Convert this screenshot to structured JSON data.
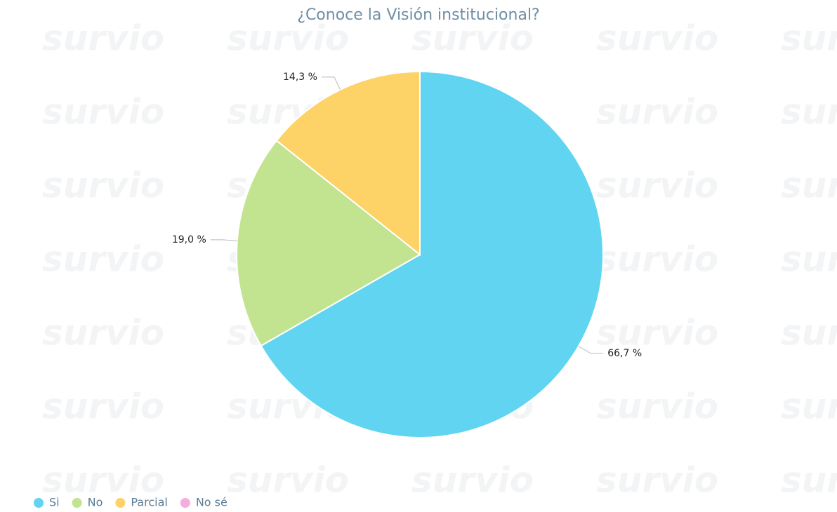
{
  "chart_data": {
    "type": "pie",
    "title": "¿Conoce la Visión institucional?",
    "watermark": "survio",
    "categories": [
      "Si",
      "No",
      "Parcial",
      "No sé"
    ],
    "values": [
      66.7,
      19.0,
      14.3,
      0
    ],
    "value_labels": [
      "66,7 %",
      "19,0 %",
      "14,3 %",
      null
    ],
    "colors": [
      "#61d4f2",
      "#c2e38f",
      "#fdd267",
      "#f5aedc"
    ],
    "legend": "bottom-left"
  }
}
